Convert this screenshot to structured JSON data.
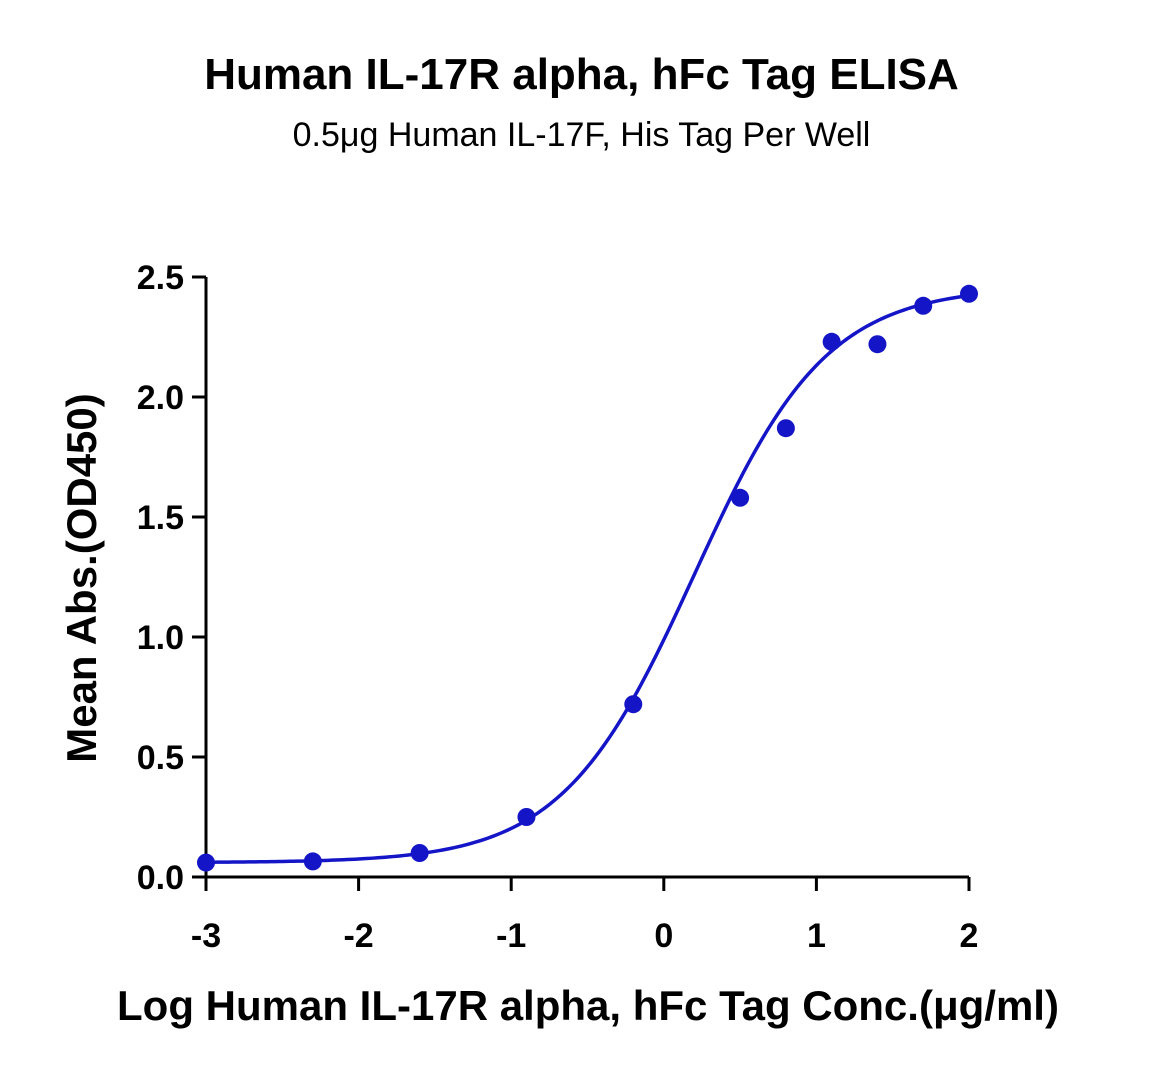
{
  "chart_data": {
    "type": "scatter",
    "title": "Human IL-17R alpha, hFc Tag ELISA",
    "subtitle": "0.5μg Human IL-17F, His Tag Per Well",
    "xlabel": "Log Human IL-17R alpha, hFc Tag Conc.(μg/ml)",
    "ylabel": "Mean Abs.(OD450)",
    "xlim": [
      -3,
      2
    ],
    "ylim": [
      0,
      2.5
    ],
    "xticks": [
      "-3",
      "-2",
      "-1",
      "0",
      "1",
      "2"
    ],
    "yticks": [
      "0.0",
      "0.5",
      "1.0",
      "1.5",
      "2.0",
      "2.5"
    ],
    "grid": false,
    "color": "#1515c8",
    "series": [
      {
        "x": [
          -3.0,
          -2.3,
          -1.6,
          -0.9,
          -0.2,
          0.5,
          0.8,
          1.1,
          1.4,
          1.7,
          2.0
        ],
        "values": [
          0.06,
          0.065,
          0.1,
          0.25,
          0.72,
          1.58,
          1.87,
          2.23,
          2.22,
          2.38,
          2.43
        ]
      }
    ],
    "fit": {
      "type": "4PL",
      "bottom": 0.06,
      "top": 2.46,
      "log_ec50": 0.2,
      "hill": 1.0
    }
  }
}
